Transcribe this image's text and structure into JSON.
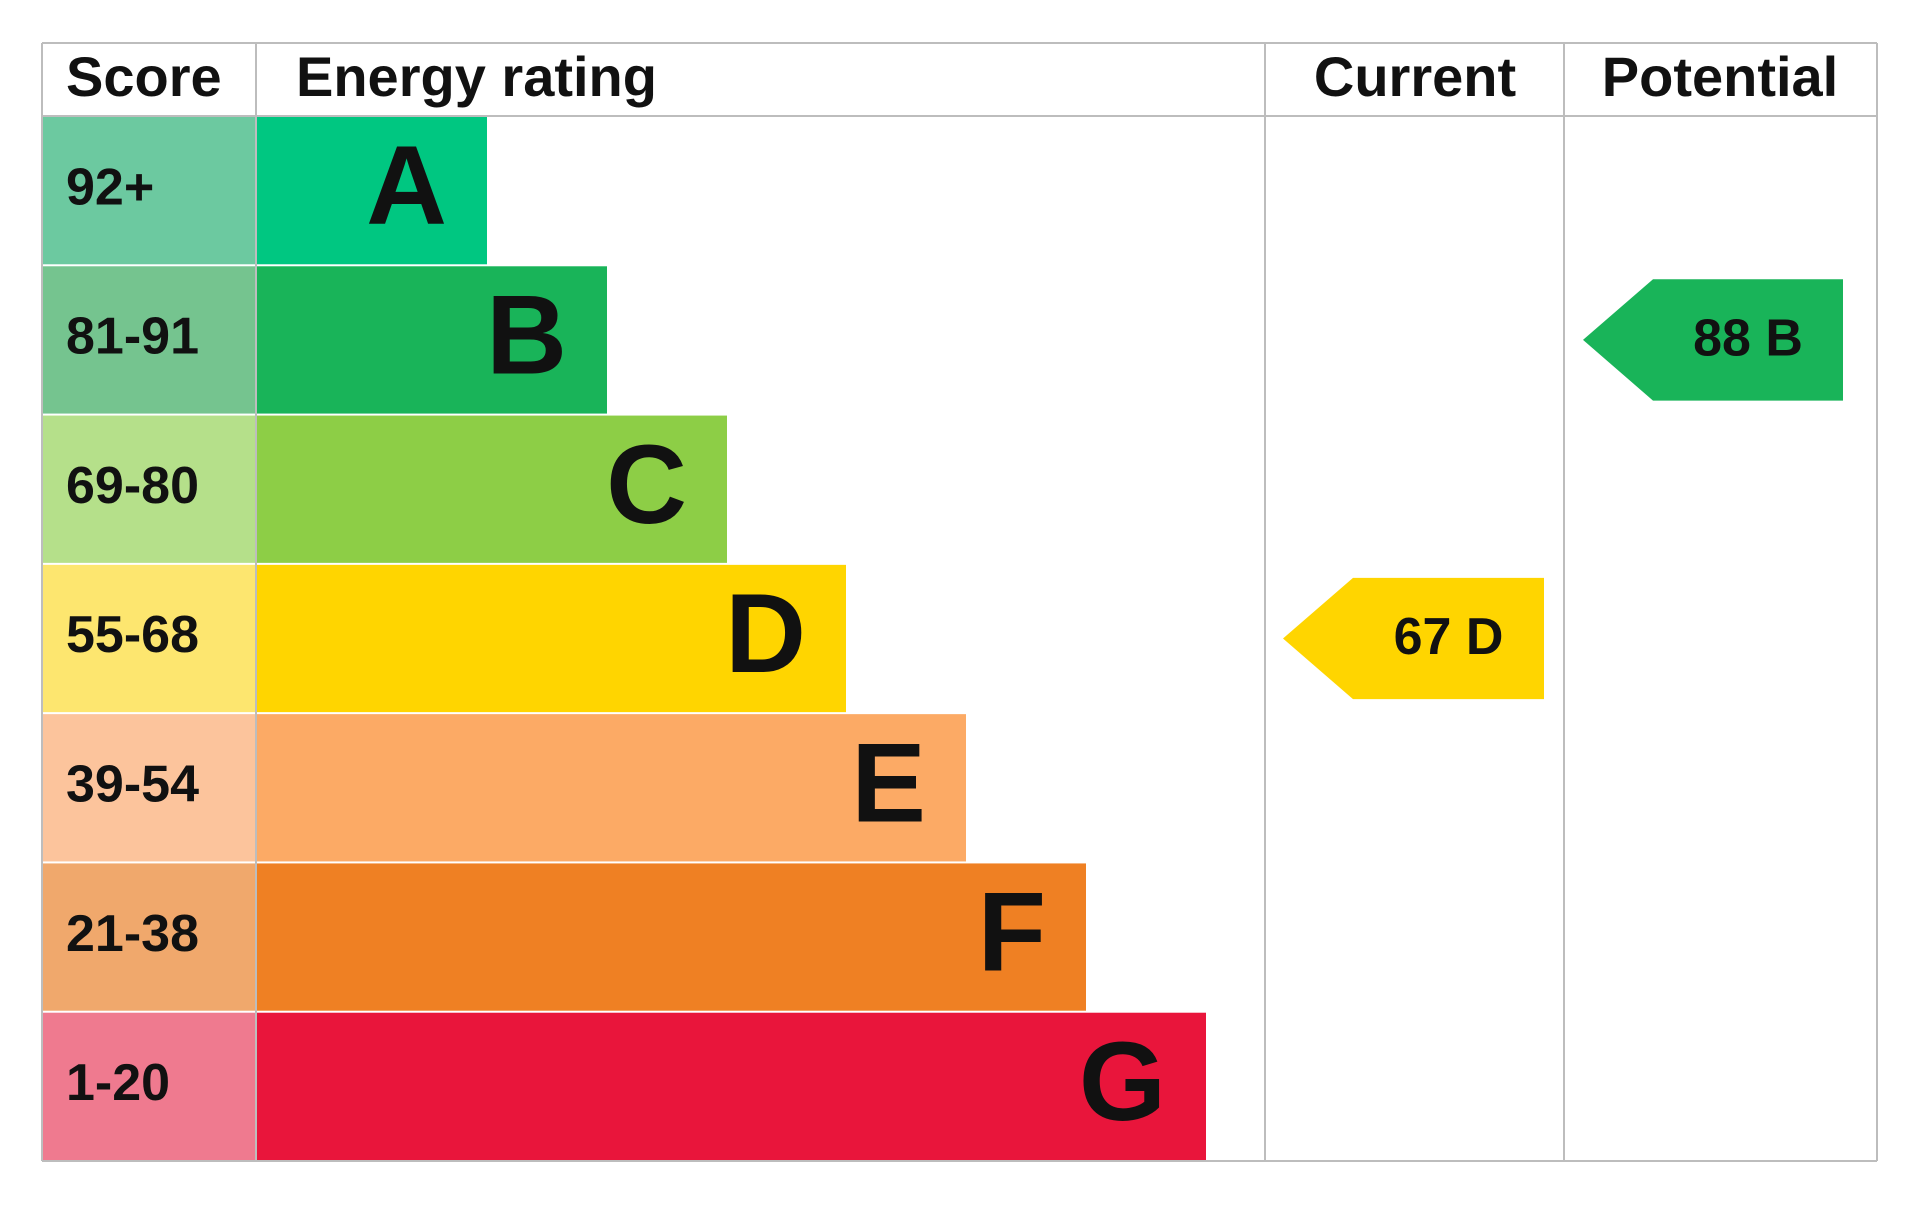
{
  "headers": [
    "Score",
    "Energy rating",
    "Current",
    "Potential"
  ],
  "bands": [
    {
      "score": "92+",
      "letter": "A"
    },
    {
      "score": "81-91",
      "letter": "B"
    },
    {
      "score": "69-80",
      "letter": "C"
    },
    {
      "score": "55-68",
      "letter": "D"
    },
    {
      "score": "39-54",
      "letter": "E"
    },
    {
      "score": "21-38",
      "letter": "F"
    },
    {
      "score": "1-20",
      "letter": "G"
    }
  ],
  "current": {
    "label": "67 D"
  },
  "potential": {
    "label": "88 B"
  }
}
